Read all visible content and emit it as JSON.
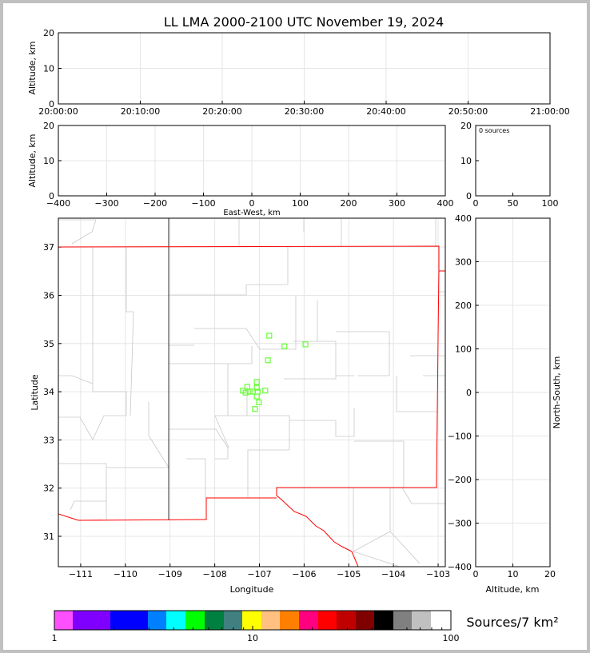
{
  "title": "LL LMA 2000-2100 UTC November 19, 2024",
  "colors": {
    "grid": "#e6e6e6",
    "state_border": "#ff0000",
    "county": "#c8c8c8",
    "source_marker": "#66ff33"
  },
  "chart_data": [
    {
      "type": "scatter",
      "name": "time-height",
      "ylabel": "Altitude, km",
      "ylim": [
        0,
        20
      ],
      "yticks": [
        "0",
        "10",
        "20"
      ],
      "xticks": [
        "20:00:00",
        "20:10:00",
        "20:20:00",
        "20:30:00",
        "20:40:00",
        "20:50:00",
        "21:00:00"
      ],
      "grid": true,
      "points": []
    },
    {
      "type": "scatter",
      "name": "east-west-altitude",
      "xlabel": "East-West, km",
      "ylabel": "Altitude, km",
      "xlim": [
        -400,
        400
      ],
      "ylim": [
        0,
        20
      ],
      "xticks": [
        "−400",
        "−300",
        "−200",
        "−100",
        "0",
        "100",
        "200",
        "300",
        "400"
      ],
      "yticks": [
        "0",
        "10",
        "20"
      ],
      "grid": true,
      "points": []
    },
    {
      "type": "bar",
      "name": "source-histogram",
      "annotation": "0 sources",
      "xlim": [
        0,
        100
      ],
      "ylim": [
        0,
        20
      ],
      "xticks": [
        "0",
        "50",
        "100"
      ],
      "yticks": [
        "0",
        "10",
        "20"
      ],
      "values": []
    },
    {
      "type": "scatter",
      "name": "plan-view-map",
      "xlabel": "Longitude",
      "ylabel": "Latitude",
      "xlim": [
        -111.5,
        -102.84
      ],
      "ylim": [
        30.37,
        37.6
      ],
      "xticks": [
        "−111",
        "−110",
        "−109",
        "−108",
        "−107",
        "−106",
        "−105",
        "−104",
        "−103"
      ],
      "yticks": [
        "31",
        "32",
        "33",
        "34",
        "35",
        "36",
        "37"
      ],
      "grid": true,
      "points": [
        {
          "lon": -106.78,
          "lat": 35.16
        },
        {
          "lon": -106.44,
          "lat": 34.94
        },
        {
          "lon": -105.97,
          "lat": 34.98
        },
        {
          "lon": -106.81,
          "lat": 34.65
        },
        {
          "lon": -107.06,
          "lat": 34.2
        },
        {
          "lon": -107.06,
          "lat": 34.08
        },
        {
          "lon": -107.27,
          "lat": 34.1
        },
        {
          "lon": -107.37,
          "lat": 34.02
        },
        {
          "lon": -107.31,
          "lat": 33.98
        },
        {
          "lon": -107.22,
          "lat": 34.0
        },
        {
          "lon": -107.15,
          "lat": 34.0
        },
        {
          "lon": -107.04,
          "lat": 34.0
        },
        {
          "lon": -106.87,
          "lat": 34.02
        },
        {
          "lon": -107.06,
          "lat": 33.9
        },
        {
          "lon": -107.01,
          "lat": 33.78
        },
        {
          "lon": -107.1,
          "lat": 33.64
        }
      ]
    },
    {
      "type": "scatter",
      "name": "north-south-altitude",
      "xlabel": "Altitude, km",
      "ylabel": "North-South, km",
      "xlim": [
        0,
        20
      ],
      "ylim": [
        -400,
        400
      ],
      "xticks": [
        "0",
        "10",
        "20"
      ],
      "yticks": [
        "−400",
        "−300",
        "−200",
        "−100",
        "0",
        "100",
        "200",
        "300",
        "400"
      ],
      "grid": true,
      "points": []
    }
  ],
  "colorbar": {
    "label": "Sources/7 km²",
    "ticks": [
      "1",
      "10",
      "100"
    ],
    "colors": [
      "#ff50ff",
      "#8000ff",
      "#0000ff",
      "#0080ff",
      "#00ffff",
      "#00ff00",
      "#008040",
      "#408080",
      "#ffff00",
      "#ffc080",
      "#ff8000",
      "#ff0080",
      "#ff0000",
      "#c00000",
      "#800000",
      "#000000",
      "#808080",
      "#c0c0c0",
      "#ffffff"
    ]
  }
}
